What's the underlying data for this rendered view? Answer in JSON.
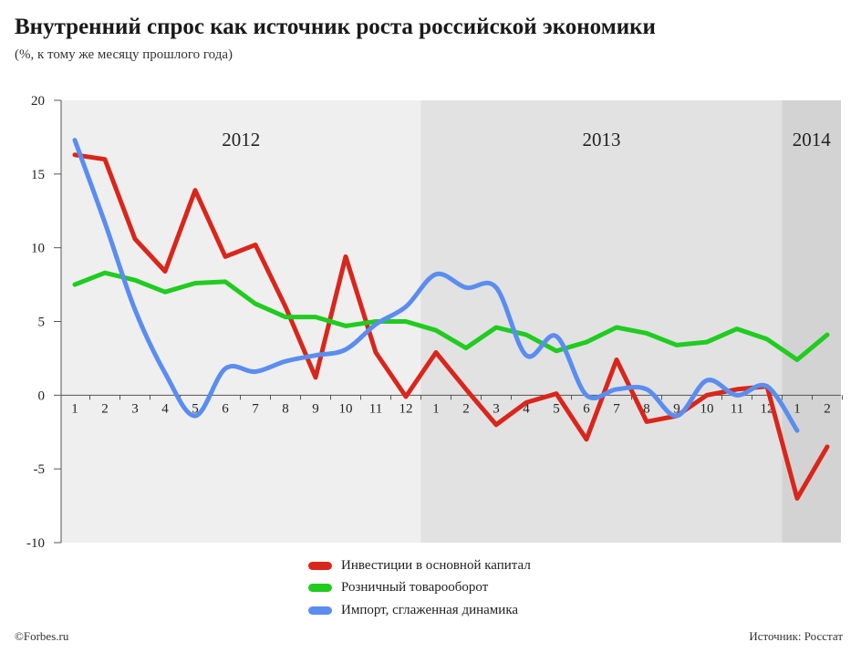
{
  "header": {
    "title": "Внутренний спрос как источник роста российской экономики",
    "subtitle": "(%, к тому же месяцу прошлого года)"
  },
  "footer": {
    "credit": "©Forbes.ru",
    "source": "Источник: Росстат"
  },
  "colors": {
    "investment": "#d9261c",
    "retail": "#1fcc1f",
    "import": "#5b8def",
    "band_2012": "#efefef",
    "band_2013": "#e2e2e2",
    "band_2014": "#d3d3d3"
  },
  "chart_data": {
    "type": "line",
    "title": "Внутренний спрос как источник роста российской экономики",
    "subtitle": "(%, к тому же месяцу прошлого года)",
    "ylim": [
      -10,
      20
    ],
    "yticks": [
      -10,
      -5,
      0,
      5,
      10,
      15,
      20
    ],
    "x_labels": [
      "1",
      "2",
      "3",
      "4",
      "5",
      "6",
      "7",
      "8",
      "9",
      "10",
      "11",
      "12",
      "1",
      "2",
      "3",
      "4",
      "5",
      "6",
      "7",
      "8",
      "9",
      "10",
      "11",
      "12",
      "1",
      "2"
    ],
    "years": [
      {
        "label": "2012",
        "start": 0,
        "end": 11
      },
      {
        "label": "2013",
        "start": 12,
        "end": 23
      },
      {
        "label": "2014",
        "start": 24,
        "end": 25
      }
    ],
    "grid": false,
    "legend_position": "bottom",
    "series": [
      {
        "name": "Инвестиции в основной капитал",
        "color": "#d9261c",
        "smooth": false,
        "values": [
          16.3,
          16.0,
          10.6,
          8.4,
          13.9,
          9.4,
          10.2,
          6.0,
          1.2,
          9.4,
          2.9,
          -0.1,
          2.9,
          0.4,
          -2.0,
          -0.5,
          0.1,
          -3.0,
          2.4,
          -1.8,
          -1.4,
          0.0,
          0.4,
          0.6,
          -7.0,
          -3.5
        ]
      },
      {
        "name": "Розничный товарооборот",
        "color": "#1fcc1f",
        "smooth": false,
        "values": [
          7.5,
          8.3,
          7.8,
          7.0,
          7.6,
          7.7,
          6.2,
          5.3,
          5.3,
          4.7,
          5.0,
          5.0,
          4.4,
          3.2,
          4.6,
          4.1,
          3.0,
          3.6,
          4.6,
          4.2,
          3.4,
          3.6,
          4.5,
          3.8,
          2.4,
          4.1
        ]
      },
      {
        "name": "Импорт, сглаженная динамика",
        "color": "#5b8def",
        "smooth": true,
        "values": [
          17.3,
          11.7,
          5.8,
          1.5,
          -1.4,
          1.8,
          1.6,
          2.3,
          2.7,
          3.1,
          4.8,
          6.0,
          8.2,
          7.3,
          7.3,
          2.7,
          4.0,
          0.0,
          0.4,
          0.4,
          -1.4,
          1.0,
          0.0,
          0.6,
          -2.4
        ]
      }
    ]
  }
}
